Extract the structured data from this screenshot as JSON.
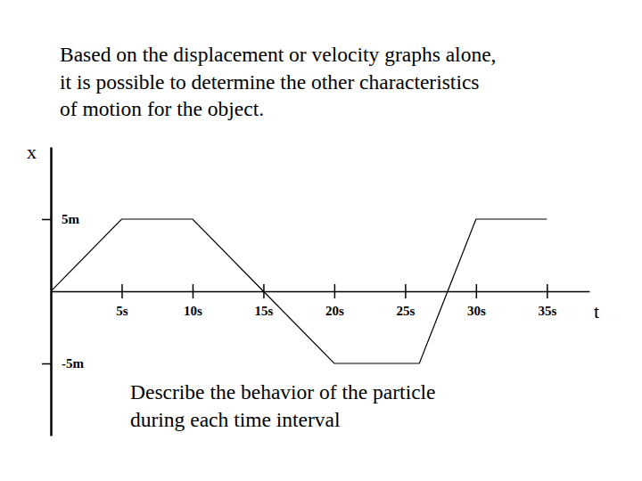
{
  "chart_data": {
    "type": "line",
    "title": [
      "Based on the displacement or velocity graphs alone,",
      "it is possible to determine the other characteristics",
      "of motion for the object."
    ],
    "annotation": [
      "Describe the behavior of the particle",
      "during each time interval"
    ],
    "x_label": "t",
    "y_label": "x",
    "x": [
      0,
      5,
      10,
      15,
      20,
      26,
      30,
      35
    ],
    "values": [
      0,
      5,
      5,
      0,
      -5,
      -5,
      5,
      5
    ],
    "color": "#000000",
    "xlim": [
      0,
      38
    ],
    "ylim": [
      -10,
      10
    ],
    "xticks": [
      {
        "value": 5,
        "label": "5s"
      },
      {
        "value": 10,
        "label": "10s"
      },
      {
        "value": 15,
        "label": "15s"
      },
      {
        "value": 20,
        "label": "20s"
      },
      {
        "value": 25,
        "label": "25s"
      },
      {
        "value": 30,
        "label": "30s"
      },
      {
        "value": 35,
        "label": "35s"
      }
    ],
    "yticks": [
      {
        "value": 5,
        "label": "5m"
      },
      {
        "value": -5,
        "label": "-5m"
      }
    ]
  }
}
